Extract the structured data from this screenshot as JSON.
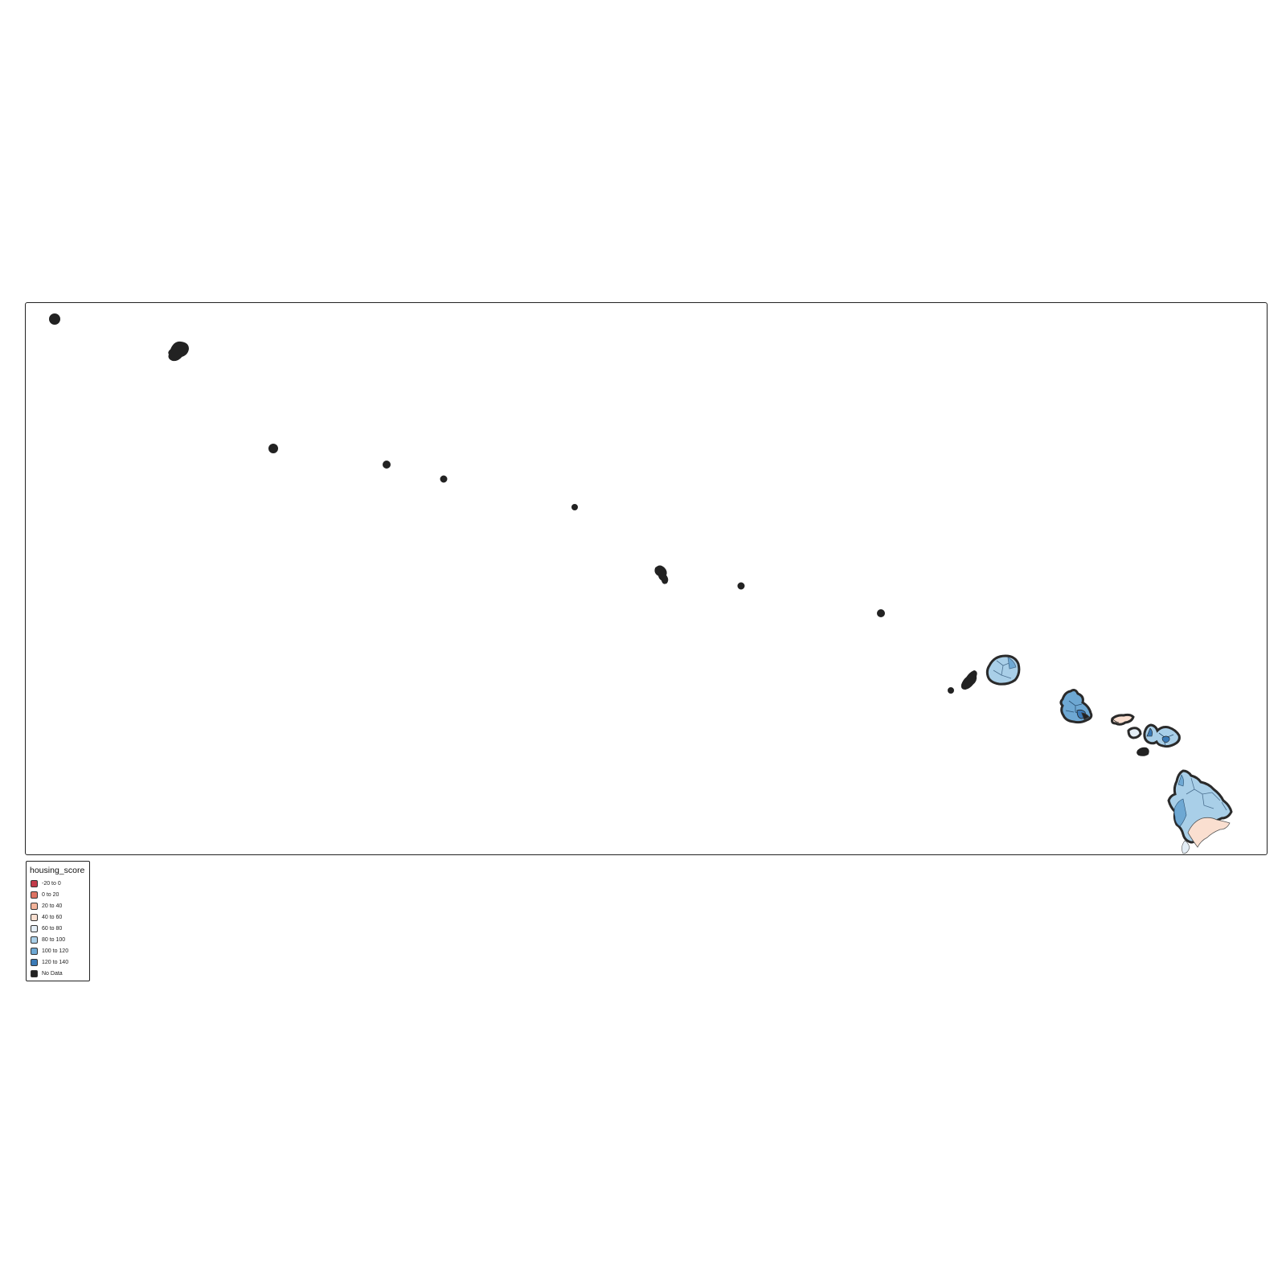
{
  "map": {
    "legend": {
      "title": "housing_score",
      "items": [
        {
          "label": "-20 to 0",
          "color": "#c23b4a"
        },
        {
          "label": "0 to 20",
          "color": "#de7363"
        },
        {
          "label": "20 to 40",
          "color": "#f4b49b"
        },
        {
          "label": "40 to 60",
          "color": "#fadfd0"
        },
        {
          "label": "60 to 80",
          "color": "#e4eef6"
        },
        {
          "label": "80 to 100",
          "color": "#a9cfe8"
        },
        {
          "label": "100 to 120",
          "color": "#6ea8d3"
        },
        {
          "label": "120 to 140",
          "color": "#3b7ab6"
        },
        {
          "label": "No Data",
          "color": "#222222"
        }
      ]
    }
  }
}
